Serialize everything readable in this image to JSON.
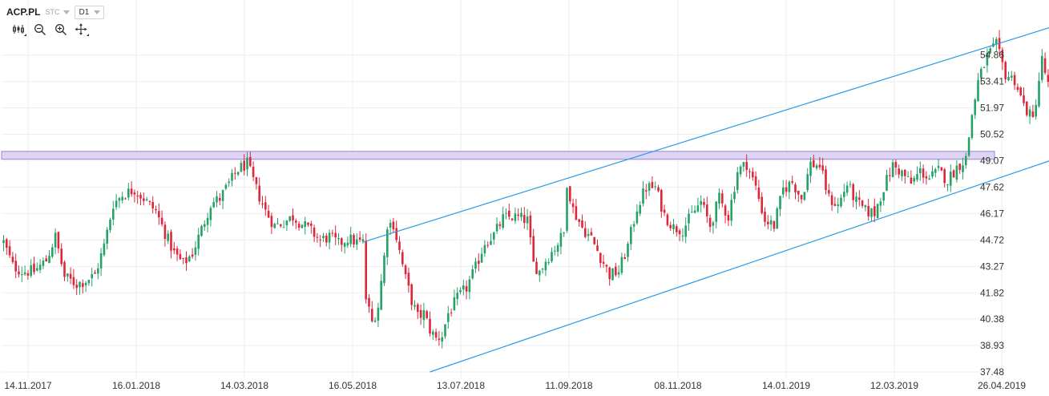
{
  "header": {
    "symbol": "ACP.PL",
    "symbol_type": "STC",
    "interval": "D1"
  },
  "toolbar": {
    "icons": [
      "candles-icon",
      "zoom-out-icon",
      "zoom-in-icon",
      "crosshair-move-icon"
    ]
  },
  "colors": {
    "up": "#26a269",
    "down": "#e0263a",
    "channel": "#2b9be6",
    "resistance_band_fill": "#d9cdf1",
    "resistance_band_stroke": "#9d86d6",
    "grid": "#eeeeee"
  },
  "chart_data": {
    "type": "candlestick",
    "grid": true,
    "y_axis": {
      "position": "right",
      "range": [
        37.48,
        56.3
      ],
      "ticks": [
        54.86,
        53.41,
        51.97,
        50.52,
        49.07,
        47.62,
        46.17,
        44.72,
        43.27,
        41.82,
        40.38,
        38.93,
        37.48
      ],
      "tick_labels": [
        "54.86",
        "53.41",
        "51.97",
        "50.52",
        "49.07",
        "47.62",
        "46.17",
        "44.72",
        "43.27",
        "41.82",
        "40.38",
        "38.93",
        "37.48"
      ]
    },
    "x_axis": {
      "tick_labels": [
        "14.11.2017",
        "16.01.2018",
        "14.03.2018",
        "16.05.2018",
        "13.07.2018",
        "11.09.2018",
        "08.11.2018",
        "14.01.2019",
        "12.03.2019",
        "26.04.2019"
      ]
    },
    "price_path": [
      [
        0,
        44.6
      ],
      [
        3,
        43.3
      ],
      [
        6,
        43.0
      ],
      [
        10,
        43.0
      ],
      [
        14,
        43.6
      ],
      [
        17,
        44.9
      ],
      [
        20,
        42.7
      ],
      [
        24,
        42.3
      ],
      [
        27,
        42.5
      ],
      [
        30,
        42.8
      ],
      [
        33,
        44.4
      ],
      [
        36,
        46.7
      ],
      [
        39,
        47.2
      ],
      [
        43,
        47.5
      ],
      [
        46,
        47.0
      ],
      [
        50,
        46.3
      ],
      [
        53,
        45.1
      ],
      [
        56,
        44.0
      ],
      [
        59,
        43.4
      ],
      [
        62,
        44.0
      ],
      [
        65,
        45.3
      ],
      [
        68,
        46.7
      ],
      [
        71,
        47.0
      ],
      [
        74,
        47.8
      ],
      [
        77,
        48.6
      ],
      [
        80,
        48.9
      ],
      [
        83,
        47.5
      ],
      [
        86,
        46.3
      ],
      [
        89,
        45.5
      ],
      [
        92,
        45.7
      ],
      [
        95,
        46.0
      ],
      [
        98,
        45.6
      ],
      [
        101,
        45.2
      ],
      [
        104,
        44.7
      ],
      [
        107,
        44.9
      ],
      [
        110,
        44.5
      ],
      [
        113,
        44.8
      ],
      [
        116,
        44.6
      ],
      [
        118,
        44.6
      ],
      [
        119,
        41.5
      ],
      [
        121,
        40.2
      ],
      [
        123,
        41.1
      ],
      [
        125,
        43.8
      ],
      [
        126,
        45.6
      ],
      [
        128,
        45.6
      ],
      [
        130,
        44.1
      ],
      [
        132,
        42.6
      ],
      [
        134,
        41.4
      ],
      [
        136,
        40.5
      ],
      [
        138,
        40.7
      ],
      [
        140,
        39.8
      ],
      [
        142,
        39.3
      ],
      [
        144,
        39.5
      ],
      [
        146,
        40.7
      ],
      [
        149,
        41.5
      ],
      [
        152,
        42.1
      ],
      [
        155,
        43.2
      ],
      [
        158,
        44.6
      ],
      [
        161,
        45.0
      ],
      [
        164,
        45.9
      ],
      [
        167,
        46.0
      ],
      [
        170,
        45.9
      ],
      [
        172,
        45.8
      ],
      [
        174,
        43.4
      ],
      [
        176,
        43.0
      ],
      [
        178,
        43.6
      ],
      [
        181,
        44.3
      ],
      [
        184,
        45.1
      ],
      [
        185,
        47.9
      ],
      [
        187,
        46.4
      ],
      [
        190,
        45.4
      ],
      [
        193,
        44.8
      ],
      [
        196,
        43.8
      ],
      [
        199,
        42.8
      ],
      [
        202,
        43.0
      ],
      [
        205,
        44.4
      ],
      [
        208,
        46.5
      ],
      [
        211,
        47.6
      ],
      [
        214,
        47.6
      ],
      [
        217,
        46.1
      ],
      [
        220,
        45.4
      ],
      [
        223,
        45.3
      ],
      [
        226,
        46.1
      ],
      [
        229,
        46.8
      ],
      [
        232,
        45.5
      ],
      [
        235,
        47.0
      ],
      [
        238,
        46.0
      ],
      [
        241,
        48.5
      ],
      [
        244,
        48.9
      ],
      [
        247,
        47.6
      ],
      [
        250,
        45.8
      ],
      [
        253,
        45.5
      ],
      [
        256,
        47.5
      ],
      [
        259,
        47.9
      ],
      [
        262,
        47.0
      ],
      [
        265,
        48.9
      ],
      [
        268,
        48.8
      ],
      [
        271,
        47.0
      ],
      [
        274,
        46.6
      ],
      [
        277,
        47.8
      ],
      [
        280,
        46.8
      ],
      [
        283,
        46.3
      ],
      [
        286,
        46.2
      ],
      [
        289,
        47.6
      ],
      [
        292,
        48.8
      ],
      [
        295,
        48.4
      ],
      [
        298,
        47.8
      ],
      [
        301,
        48.5
      ],
      [
        304,
        48.1
      ],
      [
        307,
        48.5
      ],
      [
        310,
        48.0
      ],
      [
        313,
        48.7
      ],
      [
        316,
        49.2
      ],
      [
        318,
        51.6
      ],
      [
        320,
        53.4
      ],
      [
        323,
        54.8
      ],
      [
        326,
        55.4
      ],
      [
        329,
        53.8
      ],
      [
        332,
        53.5
      ],
      [
        335,
        52.1
      ],
      [
        338,
        51.3
      ],
      [
        341,
        54.6
      ],
      [
        343,
        53.2
      ],
      [
        345,
        51.6
      ],
      [
        347,
        51.2
      ]
    ],
    "bars_count": 348,
    "annotations": [
      {
        "type": "trendline",
        "name": "channel-upper",
        "points": [
          [
            118,
            44.6
          ],
          [
            171,
            48.2
          ],
          [
            346,
            56.5
          ]
        ]
      },
      {
        "type": "trendline",
        "name": "channel-lower",
        "points": [
          [
            140,
            37.48
          ],
          [
            346,
            49.3
          ],
          [
            381,
            51.2
          ]
        ]
      },
      {
        "type": "horizontal_band",
        "name": "resistance-zone",
        "y_range": [
          49.15,
          49.58
        ]
      }
    ]
  }
}
